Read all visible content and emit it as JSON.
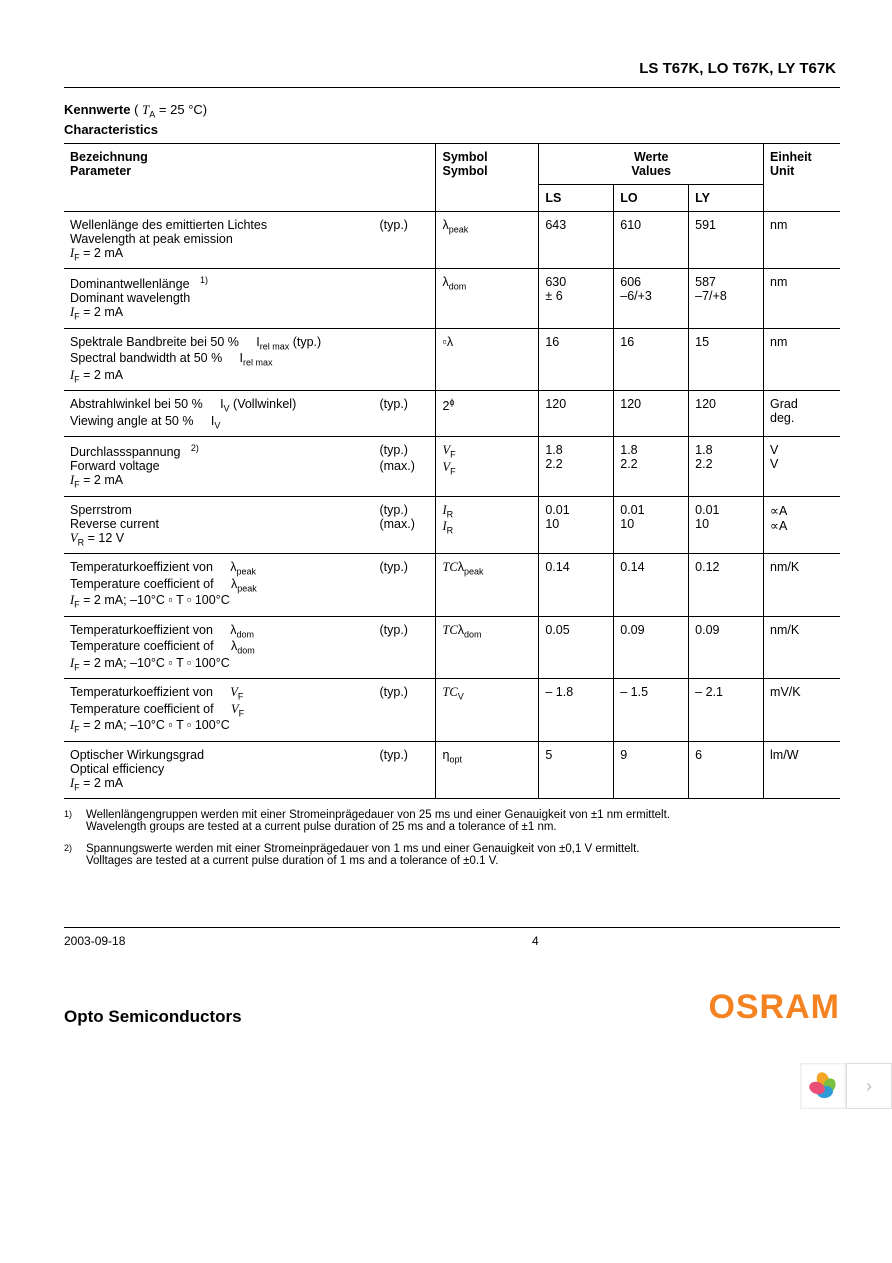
{
  "header": {
    "title": "LS T67K, LO T67K, LY T67K"
  },
  "section": {
    "kennwerte_label": "Kennwerte",
    "ta_expr": "T",
    "ta_sub": "A",
    "ta_eq": " = 25 °C)",
    "characteristics_label": "Characteristics"
  },
  "table_headers": {
    "param_de": "Bezeichnung",
    "param_en": "Parameter",
    "symbol_de": "Symbol",
    "symbol_en": "Symbol",
    "values_de": "Werte",
    "values_en": "Values",
    "unit_de": "Einheit",
    "unit_en": "Unit",
    "ls": "LS",
    "lo": "LO",
    "ly": "LY"
  },
  "rows": [
    {
      "de": "Wellenlänge des emittierten Lichtes",
      "en": "Wavelength at peak emission",
      "cond": "I",
      "cond_sub": "F",
      "cond_rest": " = 2 mA",
      "typ1": "(typ.)",
      "sym1": "λ",
      "sym1_sub": "peak",
      "ls": "643",
      "lo": "610",
      "ly": "591",
      "unit": "nm"
    },
    {
      "de": "Dominantwellenlänge",
      "de_supnote": "1)",
      "en": "Dominant wavelength",
      "cond": "I",
      "cond_sub": "F",
      "cond_rest": " = 2 mA",
      "sym1": "λ",
      "sym1_sub": "dom",
      "ls": "630",
      "ls2": "± 6",
      "lo": "606",
      "lo2": "–6/+3",
      "ly": "587",
      "ly2": "–7/+8",
      "unit": "nm"
    },
    {
      "de": "Spektrale Bandbreite bei 50 %",
      "de_extra": "I",
      "de_extra_sub": "rel max",
      "de_extra_tail": "   (typ.)",
      "en": "Spectral bandwidth at 50 %",
      "en_extra": "I",
      "en_extra_sub": "rel max",
      "cond": "I",
      "cond_sub": "F",
      "cond_rest": " = 2 mA",
      "sym1": "▫λ",
      "ls": "16",
      "lo": "16",
      "ly": "15",
      "unit": "nm"
    },
    {
      "de": "Abstrahlwinkel bei 50 %",
      "de_extra": "I",
      "de_extra_sub": "V",
      "de_extra_tail": " (Vollwinkel)",
      "en": "Viewing angle at 50 %",
      "en_extra": "I",
      "en_extra_sub": "V",
      "typ1": "(typ.)",
      "sym1": "2",
      "sym1_sup": "ϕ",
      "ls": "120",
      "lo": "120",
      "ly": "120",
      "unit": "Grad",
      "unit2": "deg."
    },
    {
      "de": "Durchlassspannung",
      "de_supnote": "2)",
      "en": "Forward voltage",
      "cond": "I",
      "cond_sub": "F",
      "cond_rest": " = 2 mA",
      "typ1": "(typ.)",
      "typ2": "(max.)",
      "sym1": "V",
      "sym1_sub": "F",
      "sym1_it": true,
      "sym2": "V",
      "sym2_sub": "F",
      "sym2_it": true,
      "ls": "1.8",
      "ls2": "2.2",
      "lo": "1.8",
      "lo2": "2.2",
      "ly": "1.8",
      "ly2": "2.2",
      "unit": "V",
      "unit2": "V"
    },
    {
      "de": "Sperrstrom",
      "en": "Reverse current",
      "cond": "V",
      "cond_sub": "R",
      "cond_rest": " = 12 V",
      "typ1": "(typ.)",
      "typ2": "(max.)",
      "sym1": "I",
      "sym1_sub": "R",
      "sym1_it": true,
      "sym2": "I",
      "sym2_sub": "R",
      "sym2_it": true,
      "ls": "0.01",
      "ls2": "10",
      "lo": "0.01",
      "lo2": "10",
      "ly": "0.01",
      "ly2": "10",
      "unit": "∝A",
      "unit2": "∝A"
    },
    {
      "de": "Temperaturkoeffizient von",
      "de_sym": "λ",
      "de_sym_sub": "peak",
      "en": "Temperature coefficient of",
      "en_sym": "λ",
      "en_sym_sub": "peak",
      "cond": "I",
      "cond_sub": "F",
      "cond_rest": " = 2 mA; –10°C    ▫ T ▫  100°C",
      "typ1": "(typ.)",
      "sym1": "TC",
      "sym1_it": true,
      "sym1_tail": "λ",
      "sym1_sub": "peak",
      "ls": "0.14",
      "lo": "0.14",
      "ly": "0.12",
      "unit": "nm/K"
    },
    {
      "de": "Temperaturkoeffizient von",
      "de_sym": "λ",
      "de_sym_sub": "dom",
      "en": "Temperature coefficient of",
      "en_sym": "λ",
      "en_sym_sub": "dom",
      "cond": "I",
      "cond_sub": "F",
      "cond_rest": " = 2 mA; –10°C    ▫ T ▫  100°C",
      "typ1": "(typ.)",
      "sym1": "TC",
      "sym1_it": true,
      "sym1_tail": "λ",
      "sym1_sub": "dom",
      "ls": "0.05",
      "lo": "0.09",
      "ly": "0.09",
      "unit": "nm/K"
    },
    {
      "de": "Temperaturkoeffizient von",
      "de_sym": "V",
      "de_sym_sub": "F",
      "de_sym_it": true,
      "en": "Temperature coefficient of",
      "en_sym": "V",
      "en_sym_sub": "F",
      "en_sym_it": true,
      "cond": "I",
      "cond_sub": "F",
      "cond_rest": " = 2 mA; –10°C    ▫ T ▫  100°C",
      "typ1": "(typ.)",
      "sym1": "TC",
      "sym1_it": true,
      "sym1_sub": "V",
      "ls": "– 1.8",
      "lo": "– 1.5",
      "ly": "– 2.1",
      "unit": "mV/K"
    },
    {
      "de": "Optischer Wirkungsgrad",
      "en": "Optical efficiency",
      "cond": "I",
      "cond_sub": "F",
      "cond_rest": " = 2 mA",
      "typ1": "(typ.)",
      "sym1": "η",
      "sym1_sub": "opt",
      "ls": "5",
      "lo": "9",
      "ly": "6",
      "unit": "lm/W"
    }
  ],
  "footnotes": [
    {
      "num": "1)",
      "de": "Wellenlängengruppen werden mit einer Stromeinprägedauer von 25 ms und einer Genauigkeit von ±1 nm ermittelt.",
      "en": "Wavelength groups are tested at a current pulse duration of 25 ms and a tolerance of ±1 nm."
    },
    {
      "num": "2)",
      "de": "Spannungswerte werden mit einer Stromeinprägedauer von 1 ms und einer Genauigkeit von ±0,1 V ermittelt.",
      "en": "Volltages are tested at a current pulse duration of 1 ms and a tolerance of ±0.1 V."
    }
  ],
  "footer": {
    "date": "2003-09-18",
    "page": "4"
  },
  "brand": {
    "left": "Opto Semiconductors",
    "right": "OSRAM",
    "color": "#f58220"
  },
  "nav": {
    "chevron": "›"
  },
  "petal_colors": [
    "#f5a623",
    "#7ac142",
    "#2e9bd6",
    "#e94e77"
  ]
}
